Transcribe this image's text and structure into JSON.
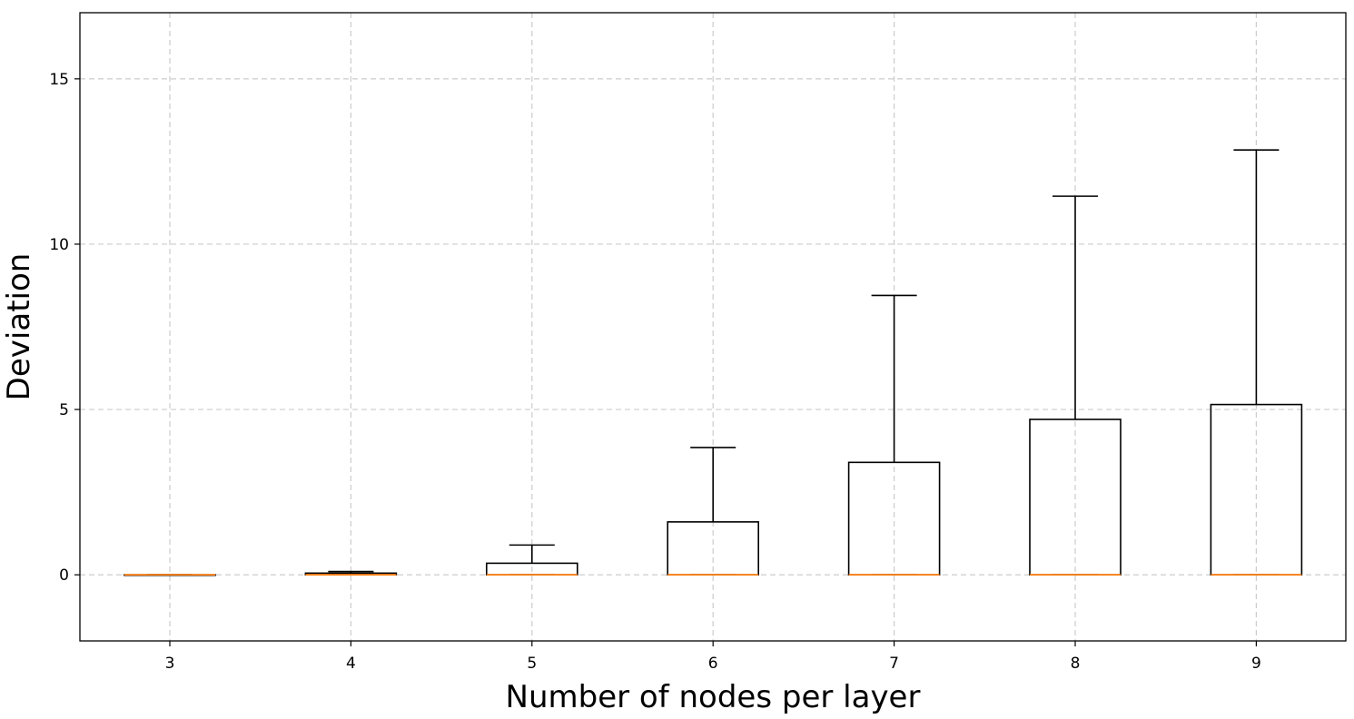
{
  "chart_data": {
    "type": "box",
    "title": "",
    "xlabel": "Number of nodes per layer",
    "ylabel": "Deviation",
    "categories": [
      "3",
      "4",
      "5",
      "6",
      "7",
      "8",
      "9"
    ],
    "ylim": [
      -2,
      17
    ],
    "yticks": [
      0,
      5,
      10,
      15
    ],
    "grid": true,
    "colors": {
      "box": "#000000",
      "median": "#ff7f0e",
      "grid": "#cccccc"
    },
    "boxes": [
      {
        "category": "3",
        "whislo": 0,
        "q1": 0,
        "med": 0,
        "q3": 0,
        "whishi": 0
      },
      {
        "category": "4",
        "whislo": 0,
        "q1": 0,
        "med": 0,
        "q3": 0.05,
        "whishi": 0.1
      },
      {
        "category": "5",
        "whislo": 0,
        "q1": 0,
        "med": 0,
        "q3": 0.35,
        "whishi": 0.9
      },
      {
        "category": "6",
        "whislo": 0,
        "q1": 0,
        "med": 0,
        "q3": 1.6,
        "whishi": 3.85
      },
      {
        "category": "7",
        "whislo": 0,
        "q1": 0,
        "med": 0,
        "q3": 3.4,
        "whishi": 8.45
      },
      {
        "category": "8",
        "whislo": 0,
        "q1": 0,
        "med": 0,
        "q3": 4.7,
        "whishi": 11.45
      },
      {
        "category": "9",
        "whislo": 0,
        "q1": 0,
        "med": 0,
        "q3": 5.15,
        "whishi": 12.85
      }
    ]
  }
}
